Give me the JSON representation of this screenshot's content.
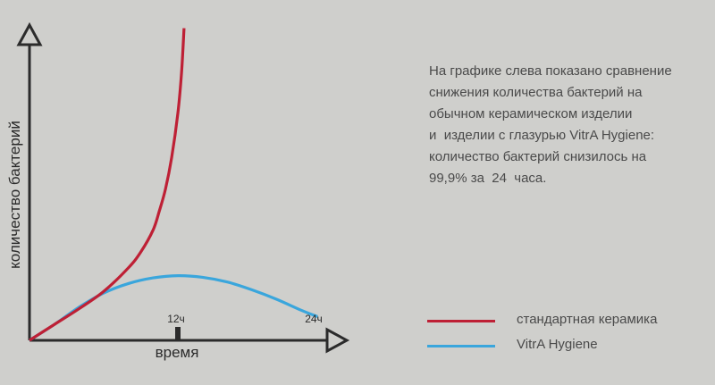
{
  "description": [
    "На графике слева показано сравнение",
    "снижения количества бактерий на",
    "обычном керамическом изделии",
    "и  изделии с глазурью VitrA Hygiene:",
    "количество бактерий снизилось на",
    "99,9% за  24  часа."
  ],
  "colors": {
    "background": "#cfcfcc",
    "axis": "#2b2b2b",
    "standard": "#be2035",
    "hygiene": "#3aa6dc"
  },
  "chart_data": {
    "type": "line",
    "title": "",
    "xlabel": "время",
    "ylabel": "количество бактерий",
    "x_ticks": [
      {
        "value": 12,
        "label": "12ч"
      },
      {
        "value": 24,
        "label": "24ч"
      }
    ],
    "xlim": [
      0,
      24
    ],
    "ylim": [
      0,
      100
    ],
    "grid": false,
    "legend_position": "bottom-right",
    "series": [
      {
        "name": "стандартная керамика",
        "color": "#be2035",
        "points": [
          [
            0,
            0
          ],
          [
            2,
            5
          ],
          [
            4,
            10
          ],
          [
            6,
            15.5
          ],
          [
            8,
            23
          ],
          [
            9,
            28
          ],
          [
            10,
            35
          ],
          [
            10.5,
            41
          ],
          [
            11,
            48
          ],
          [
            11.5,
            58
          ],
          [
            12,
            72
          ],
          [
            12.3,
            85
          ],
          [
            12.5,
            99
          ]
        ]
      },
      {
        "name": "VitrA Hygiene",
        "color": "#3aa6dc",
        "points": [
          [
            0,
            0
          ],
          [
            2,
            5
          ],
          [
            4,
            10.5
          ],
          [
            6,
            15
          ],
          [
            8,
            18
          ],
          [
            10,
            19.8
          ],
          [
            12,
            20.5
          ],
          [
            14,
            20
          ],
          [
            16,
            18.5
          ],
          [
            18,
            16
          ],
          [
            20,
            13
          ],
          [
            22,
            9.5
          ],
          [
            23.3,
            7.5
          ]
        ]
      }
    ]
  }
}
